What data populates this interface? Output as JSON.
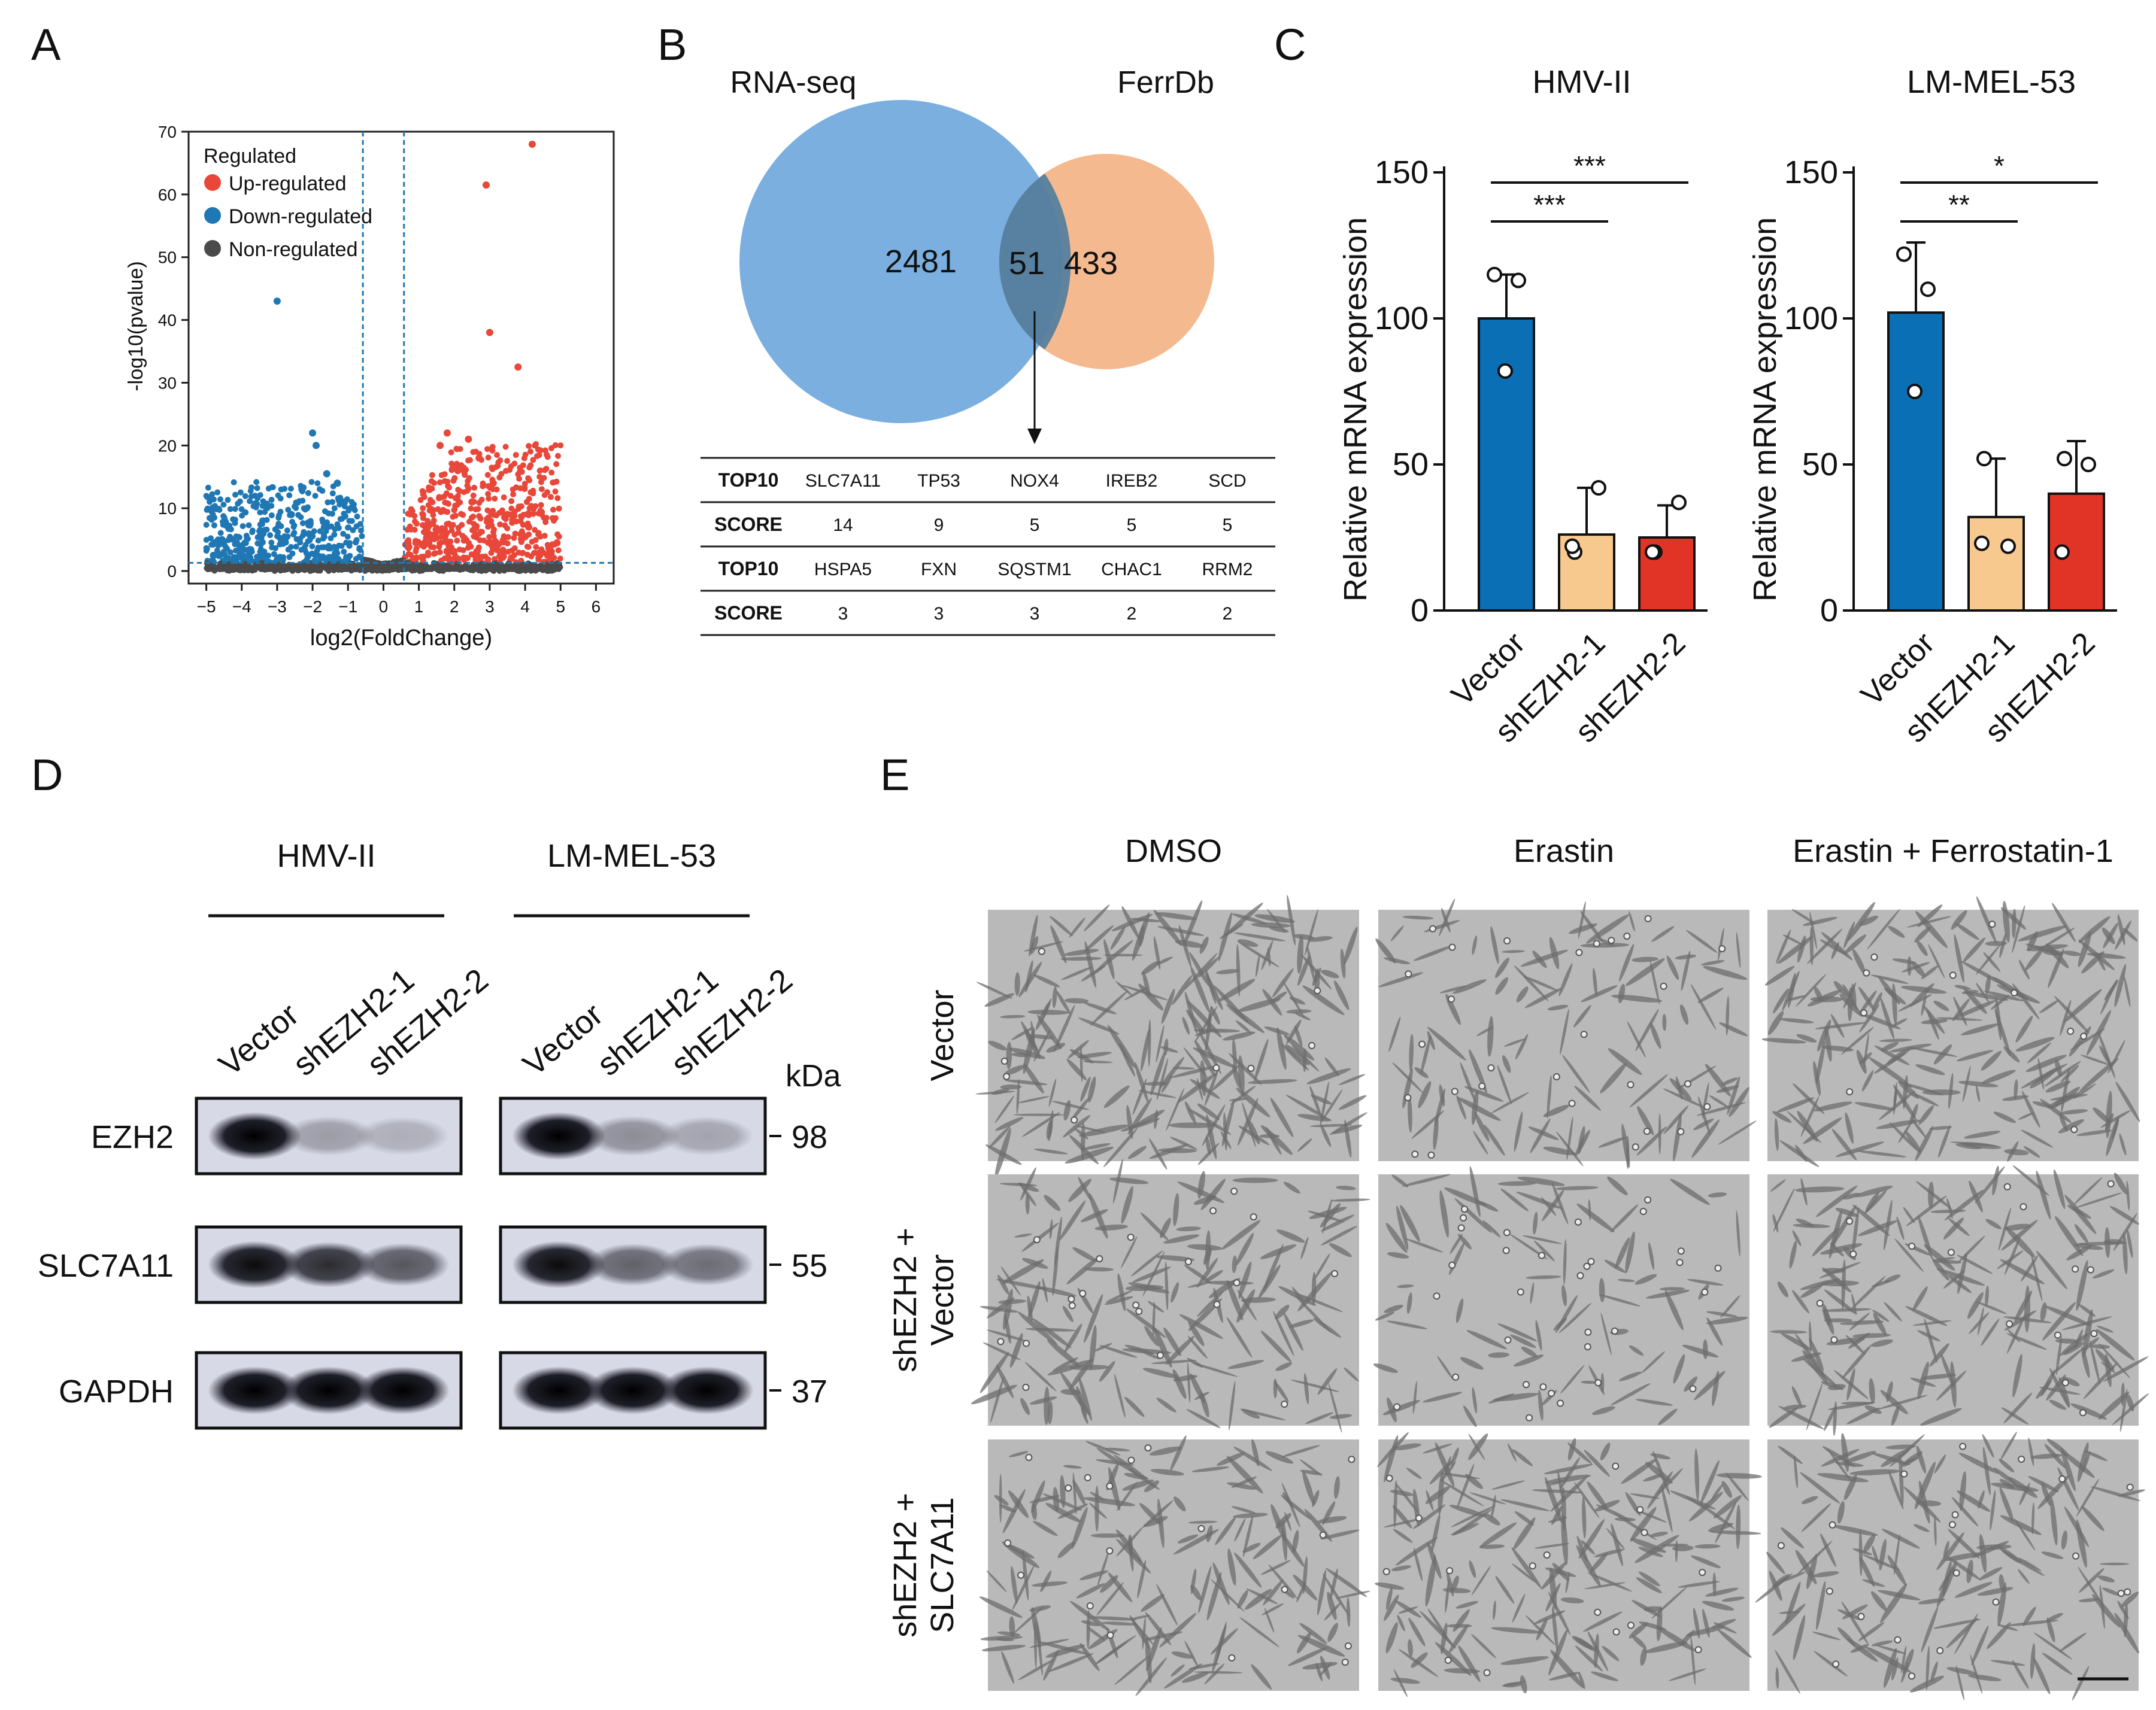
{
  "panel_letters": [
    "A",
    "B",
    "C",
    "D",
    "E"
  ],
  "volcano": {
    "legend_title": "Regulated",
    "legend_items": [
      {
        "label": "Up-regulated",
        "color": "#e8473a"
      },
      {
        "label": "Down-regulated",
        "color": "#1f77b4"
      },
      {
        "label": "Non-regulated",
        "color": "#4a4a4a"
      }
    ],
    "xlabel": "log2(FoldChange)",
    "ylabel": "-log10(pvalue)",
    "x_ticks": [
      "−5",
      "−4",
      "−3",
      "−2",
      "−1",
      "0",
      "1",
      "2",
      "3",
      "4",
      "5",
      "6"
    ],
    "y_ticks": [
      "0",
      "10",
      "20",
      "30",
      "40",
      "50",
      "60",
      "70"
    ]
  },
  "venn": {
    "set_a": "RNA-seq",
    "set_b": "FerrDb",
    "only_a": "2481",
    "both": "51",
    "only_b": "433",
    "color_a": "#6fa8dc",
    "color_b": "#f4b183",
    "table": [
      {
        "head": "TOP10",
        "cells": [
          "SLC7A11",
          "TP53",
          "NOX4",
          "IREB2",
          "SCD"
        ]
      },
      {
        "head": "SCORE",
        "cells": [
          "14",
          "9",
          "5",
          "5",
          "5"
        ]
      },
      {
        "head": "TOP10",
        "cells": [
          "HSPA5",
          "FXN",
          "SQSTM1",
          "CHAC1",
          "RRM2"
        ]
      },
      {
        "head": "SCORE",
        "cells": [
          "3",
          "3",
          "3",
          "2",
          "2"
        ]
      }
    ]
  },
  "chart_data": [
    {
      "type": "scatter",
      "title": "",
      "xlabel": "log2(FoldChange)",
      "ylabel": "-log10(pvalue)",
      "xlim": [
        -5.5,
        6.5
      ],
      "ylim": [
        -2,
        70
      ],
      "threshold_lines_x": [
        -0.58,
        0.58
      ],
      "threshold_line_y": 1.3,
      "series": [
        {
          "name": "Up-regulated",
          "color": "#e8473a",
          "highlighted_points": [
            [
              4.2,
              68
            ],
            [
              2.9,
              61.5
            ],
            [
              3.0,
              38
            ],
            [
              3.8,
              32.5
            ],
            [
              1.8,
              22
            ],
            [
              2.4,
              21
            ],
            [
              1.6,
              20
            ],
            [
              2.7,
              18
            ],
            [
              2.1,
              16
            ],
            [
              3.1,
              14
            ],
            [
              1.3,
              13
            ],
            [
              2.5,
              11
            ],
            [
              3.5,
              9
            ],
            [
              4.1,
              7
            ],
            [
              4.9,
              4.5
            ]
          ]
        },
        {
          "name": "Down-regulated",
          "color": "#1f77b4",
          "highlighted_points": [
            [
              -3.0,
              43
            ],
            [
              -2.0,
              22
            ],
            [
              -1.9,
              20
            ],
            [
              -1.6,
              15.5
            ],
            [
              -1.3,
              14
            ],
            [
              -2.3,
              13
            ],
            [
              -1.1,
              11
            ],
            [
              -2.6,
              9
            ],
            [
              -3.4,
              6
            ],
            [
              -4.0,
              4
            ],
            [
              -4.8,
              2.5
            ]
          ]
        },
        {
          "name": "Non-regulated",
          "color": "#4a4a4a",
          "highlighted_points": []
        }
      ]
    },
    {
      "type": "bar",
      "title": "HMV-II",
      "ylabel": "Relative  mRNA expression",
      "categories": [
        "Vector",
        "shEZH2-1",
        "shEZH2-2"
      ],
      "values": [
        100,
        26,
        25
      ],
      "errors": [
        15,
        16,
        11
      ],
      "points": [
        [
          115,
          113,
          82
        ],
        [
          20,
          42,
          22
        ],
        [
          20,
          37,
          20
        ]
      ],
      "colors": [
        "#0b6fb5",
        "#f8c98f",
        "#e23426"
      ],
      "ylim": [
        0,
        150
      ],
      "yticks": [
        0,
        50,
        100,
        150
      ],
      "significance": [
        {
          "from": 0,
          "to": 1,
          "label": "***"
        },
        {
          "from": 0,
          "to": 2,
          "label": "***"
        }
      ]
    },
    {
      "type": "bar",
      "title": "LM-MEL-53",
      "ylabel": "Relative  mRNA expression",
      "categories": [
        "Vector",
        "shEZH2-1",
        "shEZH2-2"
      ],
      "values": [
        102,
        32,
        40
      ],
      "errors": [
        24,
        20,
        18
      ],
      "points": [
        [
          122,
          110,
          75
        ],
        [
          52,
          22,
          23
        ],
        [
          52,
          50,
          20
        ]
      ],
      "colors": [
        "#0b6fb5",
        "#f8c98f",
        "#e23426"
      ],
      "ylim": [
        0,
        150
      ],
      "yticks": [
        0,
        50,
        100,
        150
      ],
      "significance": [
        {
          "from": 0,
          "to": 1,
          "label": "**"
        },
        {
          "from": 0,
          "to": 2,
          "label": "*"
        }
      ]
    }
  ],
  "western": {
    "groups": [
      "HMV-II",
      "LM-MEL-53"
    ],
    "lanes": [
      "Vector",
      "shEZH2-1",
      "shEZH2-2"
    ],
    "kda_label": "kDa",
    "rows": [
      {
        "protein": "EZH2",
        "kda": "98",
        "intensity": [
          [
            1.0,
            0.28,
            0.2
          ],
          [
            1.0,
            0.35,
            0.25
          ]
        ]
      },
      {
        "protein": "SLC7A11",
        "kda": "55",
        "intensity": [
          [
            0.95,
            0.8,
            0.6
          ],
          [
            0.95,
            0.55,
            0.5
          ]
        ]
      },
      {
        "protein": "GAPDH",
        "kda": "37",
        "intensity": [
          [
            1.0,
            1.0,
            1.0
          ],
          [
            1.0,
            1.0,
            1.0
          ]
        ]
      }
    ]
  },
  "micrographs": {
    "columns": [
      "DMSO",
      "Erastin",
      "Erastin + Ferrostatin-1"
    ],
    "rows": [
      {
        "line1": "Vector",
        "line2": ""
      },
      {
        "line1": "shEZH2 +",
        "line2": "Vector"
      },
      {
        "line1": "shEZH2 +",
        "line2": "SLC7A11"
      }
    ],
    "cell_density": [
      [
        1.0,
        0.5,
        0.95
      ],
      [
        0.7,
        0.4,
        0.8
      ],
      [
        0.75,
        0.8,
        0.7
      ]
    ]
  }
}
